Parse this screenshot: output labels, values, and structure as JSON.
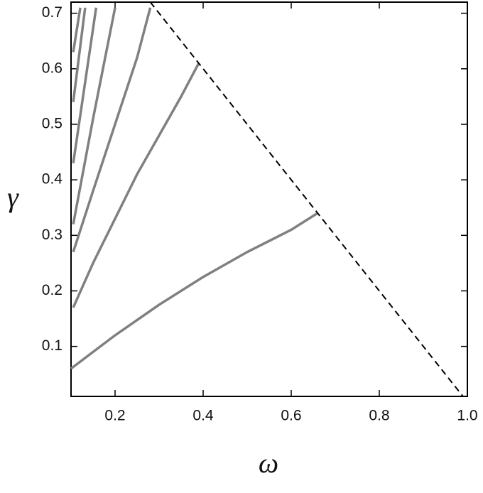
{
  "chart_data": {
    "type": "line",
    "x_label": "ω",
    "y_label": "γ",
    "xlim": [
      0.1,
      1.0
    ],
    "ylim": [
      0.01,
      0.72
    ],
    "xticks": [
      0.2,
      0.4,
      0.6,
      0.8,
      {
        "value": 1.0,
        "label": "1.0"
      }
    ],
    "yticks": [
      0.1,
      0.2,
      0.3,
      0.4,
      0.5,
      0.6,
      0.7
    ],
    "series": [
      {
        "color": "#808080",
        "x": [
          0.1,
          0.2,
          0.3,
          0.4,
          0.5,
          0.6,
          0.66
        ],
        "values": [
          0.06,
          0.12,
          0.175,
          0.225,
          0.27,
          0.31,
          0.34
        ]
      },
      {
        "color": "#808080",
        "x": [
          0.105,
          0.15,
          0.2,
          0.25,
          0.3,
          0.35,
          0.39
        ],
        "values": [
          0.17,
          0.25,
          0.33,
          0.41,
          0.48,
          0.55,
          0.61
        ]
      },
      {
        "color": "#808080",
        "x": [
          0.105,
          0.15,
          0.2,
          0.25,
          0.28
        ],
        "values": [
          0.27,
          0.38,
          0.5,
          0.62,
          0.71
        ]
      },
      {
        "color": "#808080",
        "x": [
          0.105,
          0.15,
          0.2
        ],
        "values": [
          0.32,
          0.51,
          0.71
        ]
      },
      {
        "color": "#808080",
        "x": [
          0.105,
          0.157
        ],
        "values": [
          0.43,
          0.71
        ]
      },
      {
        "color": "#808080",
        "x": [
          0.105,
          0.132
        ],
        "values": [
          0.54,
          0.71
        ]
      },
      {
        "color": "#808080",
        "x": [
          0.105,
          0.121
        ],
        "values": [
          0.63,
          0.71
        ]
      },
      {
        "color": "#000000",
        "dashed": true,
        "x": [
          0.28,
          0.99
        ],
        "values": [
          0.72,
          0.01
        ]
      }
    ]
  }
}
